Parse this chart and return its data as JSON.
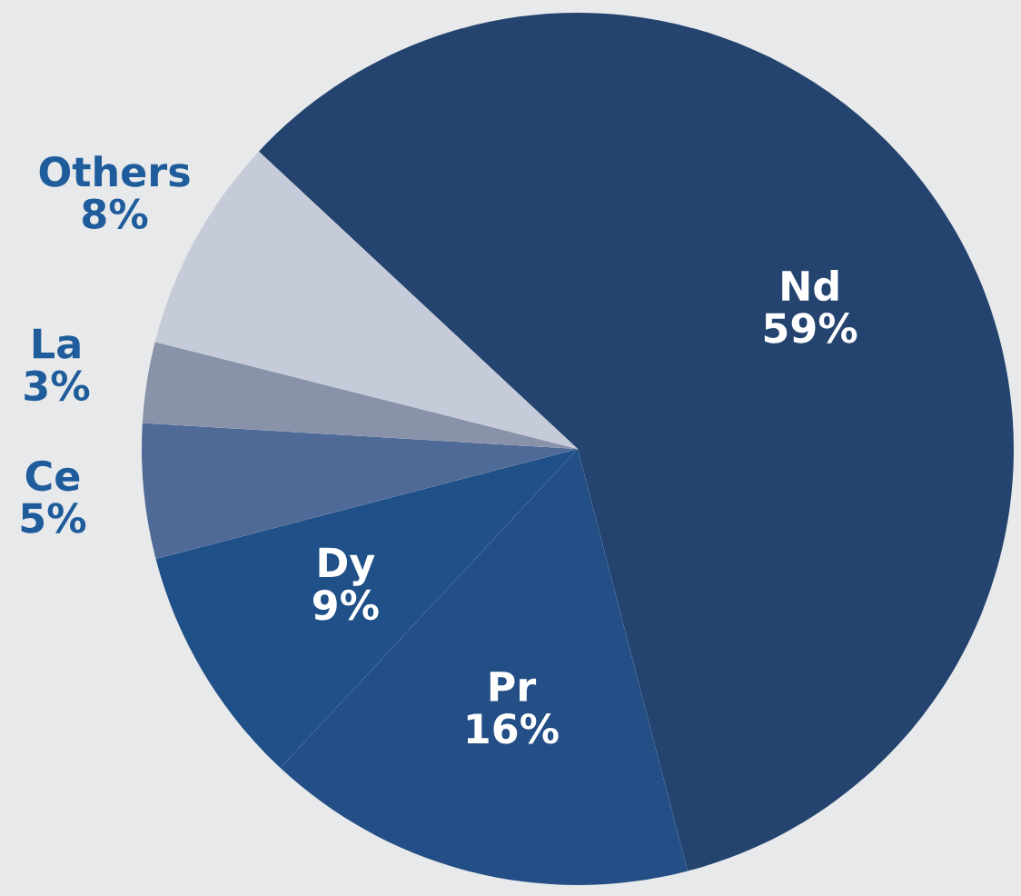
{
  "chart_data": {
    "type": "pie",
    "categories": [
      "Nd",
      "Pr",
      "Dy",
      "Ce",
      "La",
      "Others"
    ],
    "values": [
      59,
      16,
      9,
      5,
      3,
      8
    ],
    "value_labels": [
      "59%",
      "16%",
      "9%",
      "5%",
      "3%",
      "8%"
    ],
    "colors": [
      "#24446f",
      "#234f86",
      "#1f5088",
      "#506a98",
      "#8893aa",
      "#c5cbd8"
    ]
  }
}
